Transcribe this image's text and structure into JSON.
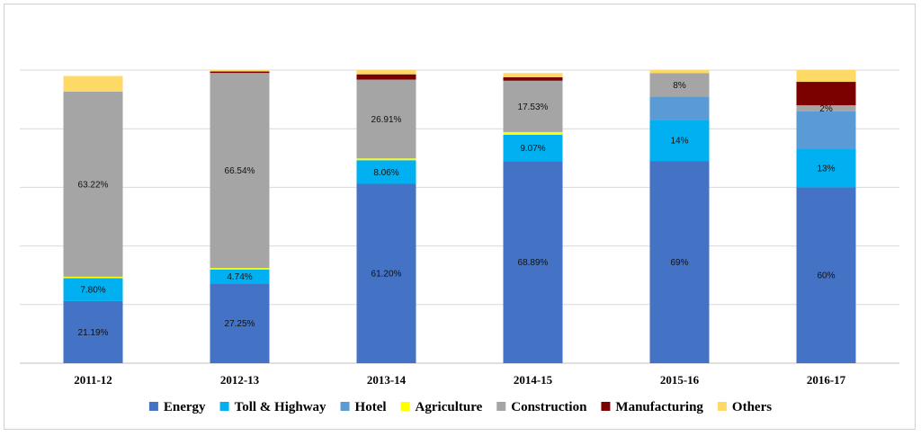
{
  "chart_data": {
    "type": "bar",
    "stacked": true,
    "categories": [
      "2011-12",
      "2012-13",
      "2013-14",
      "2014-15",
      "2015-16",
      "2016-17"
    ],
    "ylim": [
      0,
      100
    ],
    "grid": true,
    "legend_position": "bottom",
    "series": [
      {
        "name": "Energy",
        "color": "#4472C4",
        "values": [
          21.19,
          27.25,
          61.2,
          68.89,
          69,
          60
        ],
        "labels": [
          "21.19%",
          "27.25%",
          "61.20%",
          "68.89%",
          "69%",
          "60%"
        ]
      },
      {
        "name": "Toll & Highway",
        "color": "#00B0F0",
        "values": [
          7.8,
          4.74,
          8.06,
          9.07,
          14,
          13
        ],
        "labels": [
          "7.80%",
          "4.74%",
          "8.06%",
          "9.07%",
          "14%",
          "13%"
        ]
      },
      {
        "name": "Hotel",
        "color": "#5B9BD5",
        "values": [
          0,
          0,
          0,
          0,
          8,
          13
        ],
        "labels": [
          "",
          "",
          "",
          "",
          "",
          ""
        ]
      },
      {
        "name": "Agriculture",
        "color": "#FFFF00",
        "values": [
          0.5,
          0.5,
          0.6,
          0.9,
          0,
          0
        ],
        "labels": [
          "",
          "",
          "",
          "",
          "",
          ""
        ]
      },
      {
        "name": "Construction",
        "color": "#A5A5A5",
        "values": [
          63.22,
          66.54,
          26.91,
          17.53,
          8,
          2
        ],
        "labels": [
          "63.22%",
          "66.54%",
          "26.91%",
          "17.53%",
          "8%",
          "2%"
        ]
      },
      {
        "name": "Manufacturing",
        "color": "#7B0000",
        "values": [
          0,
          0.5,
          1.8,
          1.2,
          0,
          8
        ],
        "labels": [
          "",
          "",
          "",
          "",
          "",
          ""
        ]
      },
      {
        "name": "Others",
        "color": "#FFD966",
        "values": [
          5.3,
          0.47,
          1.43,
          1.41,
          1,
          4
        ],
        "labels": [
          "",
          "",
          "",
          "",
          "",
          ""
        ]
      }
    ]
  }
}
